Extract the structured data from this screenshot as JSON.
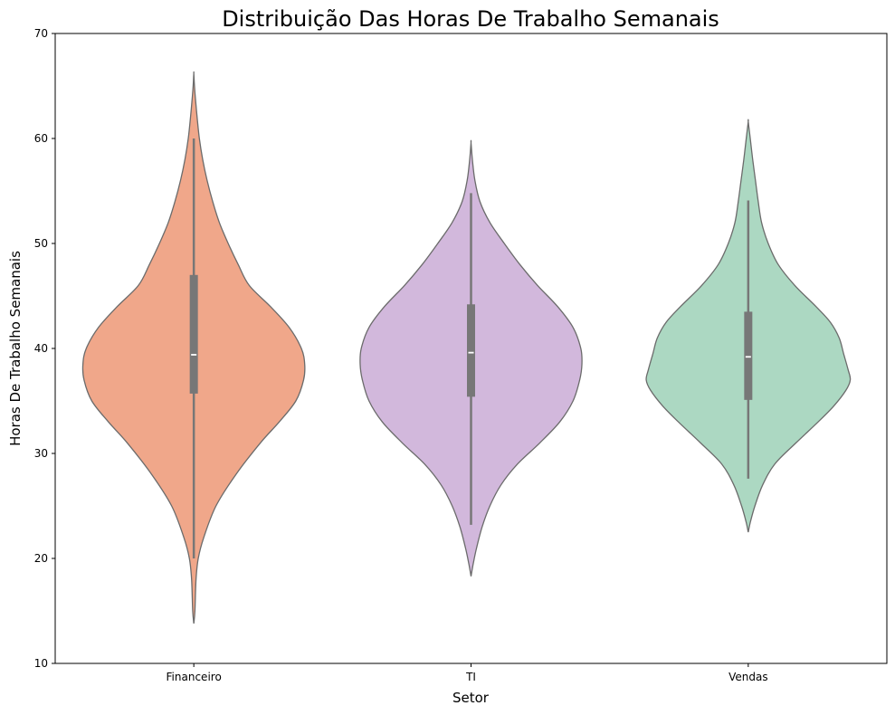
{
  "chart_data": {
    "type": "violin",
    "title": "Distribuição Das Horas De Trabalho Semanais",
    "xlabel": "Setor",
    "ylabel": "Horas De Trabalho Semanais",
    "ylim": [
      10,
      70
    ],
    "yticks": [
      "10",
      "20",
      "30",
      "40",
      "50",
      "60",
      "70"
    ],
    "grid": false,
    "categories": [
      "Financeiro",
      "TI",
      "Vendas"
    ],
    "series": [
      {
        "category": "Financeiro",
        "color": "#f0a78a",
        "min": 20,
        "q1": 35.7,
        "median": 39.4,
        "q3": 47,
        "max": 60,
        "density_extent": [
          13.8,
          66.2
        ],
        "profile": [
          [
            13.8,
            0
          ],
          [
            15,
            0.01
          ],
          [
            18,
            0.02
          ],
          [
            20,
            0.04
          ],
          [
            22,
            0.09
          ],
          [
            25,
            0.2
          ],
          [
            28,
            0.38
          ],
          [
            31,
            0.6
          ],
          [
            33,
            0.77
          ],
          [
            35,
            0.92
          ],
          [
            37,
            0.99
          ],
          [
            38.5,
            1
          ],
          [
            40,
            0.97
          ],
          [
            42,
            0.86
          ],
          [
            44,
            0.69
          ],
          [
            46,
            0.5
          ],
          [
            48,
            0.4
          ],
          [
            50,
            0.31
          ],
          [
            52,
            0.23
          ],
          [
            54,
            0.17
          ],
          [
            56,
            0.12
          ],
          [
            58,
            0.08
          ],
          [
            60,
            0.05
          ],
          [
            62,
            0.03
          ],
          [
            64,
            0.013
          ],
          [
            65,
            0.006
          ],
          [
            66.2,
            0
          ]
        ]
      },
      {
        "category": "TI",
        "color": "#d2b8dc",
        "min": 23.2,
        "q1": 35.4,
        "median": 39.6,
        "q3": 44.2,
        "max": 54.8,
        "density_extent": [
          18.3,
          59.6
        ],
        "profile": [
          [
            18.3,
            0
          ],
          [
            19.5,
            0.02
          ],
          [
            21,
            0.05
          ],
          [
            23,
            0.1
          ],
          [
            25,
            0.17
          ],
          [
            27,
            0.27
          ],
          [
            29,
            0.42
          ],
          [
            31,
            0.62
          ],
          [
            33,
            0.8
          ],
          [
            35,
            0.92
          ],
          [
            37,
            0.98
          ],
          [
            38.5,
            1
          ],
          [
            40,
            0.99
          ],
          [
            42,
            0.92
          ],
          [
            44,
            0.78
          ],
          [
            46,
            0.6
          ],
          [
            48,
            0.44
          ],
          [
            50,
            0.3
          ],
          [
            52,
            0.17
          ],
          [
            54,
            0.08
          ],
          [
            56,
            0.035
          ],
          [
            58,
            0.012
          ],
          [
            59.6,
            0
          ]
        ]
      },
      {
        "category": "Vendas",
        "color": "#acd8c2",
        "min": 27.6,
        "q1": 35.1,
        "median": 39.2,
        "q3": 43.5,
        "max": 54.1,
        "density_extent": [
          22.5,
          61.6
        ],
        "profile": [
          [
            22.5,
            0
          ],
          [
            23.5,
            0.02
          ],
          [
            25,
            0.06
          ],
          [
            27,
            0.13
          ],
          [
            29,
            0.24
          ],
          [
            31,
            0.43
          ],
          [
            33,
            0.63
          ],
          [
            34.5,
            0.77
          ],
          [
            36,
            0.88
          ],
          [
            37,
            0.92
          ],
          [
            38,
            0.9
          ],
          [
            39.5,
            0.86
          ],
          [
            41,
            0.82
          ],
          [
            42.5,
            0.74
          ],
          [
            44,
            0.61
          ],
          [
            46,
            0.42
          ],
          [
            48,
            0.27
          ],
          [
            50,
            0.18
          ],
          [
            52,
            0.12
          ],
          [
            54,
            0.09
          ],
          [
            56,
            0.065
          ],
          [
            58,
            0.04
          ],
          [
            60,
            0.018
          ],
          [
            61.6,
            0
          ]
        ]
      }
    ]
  }
}
